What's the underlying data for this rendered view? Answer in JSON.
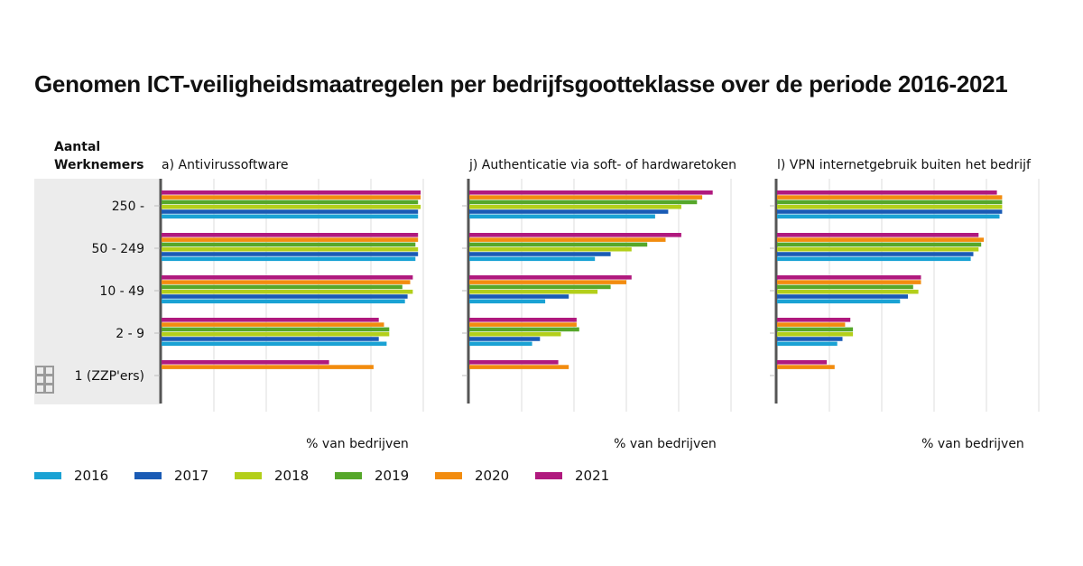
{
  "title": "Genomen ICT-veiligheidsmaatregelen per bedrijfsgootteklasse over de periode 2016-2021",
  "row_header": [
    "Aantal",
    "Werknemers"
  ],
  "colors": {
    "2016": "#1aa2d4",
    "2017": "#1a5bb5",
    "2018": "#b3cf1a",
    "2019": "#56a72a",
    "2020": "#f28c0f",
    "2021": "#b0197e",
    "band": "#ececec",
    "axis": "#555555",
    "grid": "#e3e3e3"
  },
  "chart_data": {
    "type": "bar",
    "orientation": "horizontal",
    "categories": [
      "250 -",
      "50 - 249",
      "10 - 49",
      "2 - 9",
      "1 (ZZP'ers)"
    ],
    "years": [
      "2021",
      "2020",
      "2019",
      "2018",
      "2017",
      "2016"
    ],
    "xlabel": "% van bedrijven",
    "xlim": [
      0,
      100
    ],
    "grid": true,
    "panels": [
      {
        "title": "a) Antivirussoftware",
        "values": {
          "2021": [
            99,
            98,
            96,
            83,
            64
          ],
          "2020": [
            99,
            98,
            95,
            85,
            81
          ],
          "2019": [
            98,
            97,
            92,
            87,
            null
          ],
          "2018": [
            99,
            98,
            96,
            87,
            null
          ],
          "2017": [
            98,
            98,
            94,
            83,
            null
          ],
          "2016": [
            98,
            97,
            93,
            86,
            null
          ]
        }
      },
      {
        "title": "j) Authenticatie via soft- of hardwaretoken",
        "values": {
          "2021": [
            93,
            81,
            62,
            41,
            34
          ],
          "2020": [
            89,
            75,
            60,
            41,
            38
          ],
          "2019": [
            87,
            68,
            54,
            42,
            null
          ],
          "2018": [
            81,
            62,
            49,
            35,
            null
          ],
          "2017": [
            76,
            54,
            38,
            27,
            null
          ],
          "2016": [
            71,
            48,
            29,
            24,
            null
          ]
        }
      },
      {
        "title": "l) VPN internetgebruik buiten het bedrijf",
        "values": {
          "2021": [
            84,
            77,
            55,
            28,
            19
          ],
          "2020": [
            86,
            79,
            55,
            26,
            22
          ],
          "2019": [
            86,
            78,
            52,
            29,
            null
          ],
          "2018": [
            86,
            77,
            54,
            29,
            null
          ],
          "2017": [
            86,
            75,
            50,
            25,
            null
          ],
          "2016": [
            85,
            74,
            47,
            23,
            null
          ]
        }
      }
    ]
  },
  "legend": [
    {
      "year": "2016"
    },
    {
      "year": "2017"
    },
    {
      "year": "2018"
    },
    {
      "year": "2019"
    },
    {
      "year": "2020"
    },
    {
      "year": "2021"
    }
  ]
}
